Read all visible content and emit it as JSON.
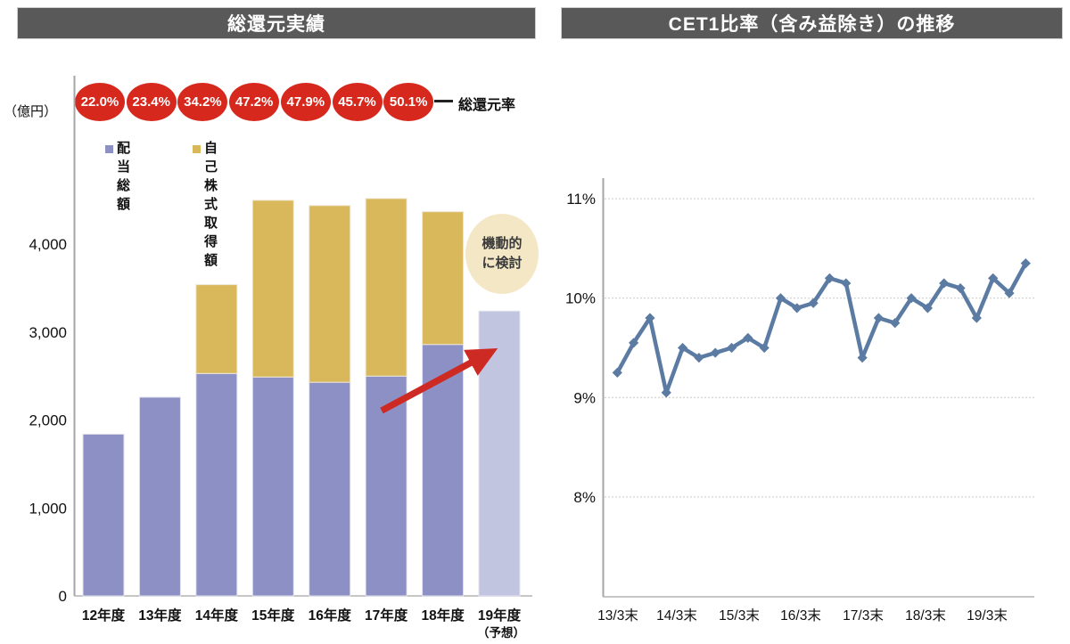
{
  "left_panel": {
    "title": "総還元実績",
    "unit_label": "（億円）",
    "ratio_label": "総還元率",
    "legend": [
      {
        "label": "配当総額",
        "color": "#8c90c4"
      },
      {
        "label": "自己株式取得額",
        "color": "#d9b85c"
      }
    ],
    "annotation": {
      "line1": "機動的",
      "line2": "に検討"
    },
    "forecast_note": "（予想）"
  },
  "right_panel": {
    "title": "CET1比率（含み益除き）の推移"
  },
  "colors": {
    "header_bg": "#595959",
    "dividend_bar": "#8c90c4",
    "buyback_bar": "#d9b85c",
    "forecast_bar": "#c2c5e0",
    "ratio_badge": "#d7281d",
    "arrow_red": "#ce2a24",
    "line_blue": "#5b7ba3",
    "annotation_bg": "#f3e7c6",
    "axis_gray": "#a6a6a6",
    "grid_gray": "#c9c9c9"
  },
  "chart_data": [
    {
      "type": "bar",
      "title": "総還元実績",
      "stacked": true,
      "unit": "億円",
      "categories": [
        "12年度",
        "13年度",
        "14年度",
        "15年度",
        "16年度",
        "17年度",
        "18年度",
        "19年度"
      ],
      "series": [
        {
          "name": "配当総額",
          "values": [
            1840,
            2260,
            2530,
            2490,
            2430,
            2500,
            2860,
            3240
          ]
        },
        {
          "name": "自己株式取得額",
          "values": [
            0,
            0,
            1010,
            2010,
            2010,
            2020,
            1510,
            0
          ]
        }
      ],
      "payout_ratios": [
        "22.0%",
        "23.4%",
        "34.2%",
        "47.2%",
        "47.9%",
        "45.7%",
        "50.1%"
      ],
      "forecast_index": 7,
      "yticks": [
        {
          "label": "0",
          "value": 0
        },
        {
          "label": "1,000",
          "value": 1000
        },
        {
          "label": "2,000",
          "value": 2000
        },
        {
          "label": "3,000",
          "value": 3000
        },
        {
          "label": "4,000",
          "value": 4000
        }
      ],
      "ylim": [
        0,
        4750
      ],
      "grid": false,
      "legend_position": "top-left"
    },
    {
      "type": "line",
      "title": "CET1比率（含み益除き）の推移",
      "x_labels": [
        "13/3末",
        "14/3末",
        "15/3末",
        "16/3末",
        "17/3末",
        "18/3末",
        "19/3末"
      ],
      "x_label_point_indices": [
        0,
        4,
        8,
        12,
        16,
        20,
        24
      ],
      "x_frequency": "quarterly",
      "values": [
        9.25,
        9.55,
        9.8,
        9.05,
        9.5,
        9.4,
        9.45,
        9.5,
        9.6,
        9.5,
        10.0,
        9.9,
        9.95,
        10.2,
        10.15,
        9.4,
        9.8,
        9.75,
        10.0,
        9.9,
        10.15,
        10.1,
        9.8,
        10.2,
        10.05,
        10.35
      ],
      "yticks": [
        {
          "label": "11%",
          "value": 11
        },
        {
          "label": "10%",
          "value": 10
        },
        {
          "label": "9%",
          "value": 9
        },
        {
          "label": "8%",
          "value": 8
        }
      ],
      "ylim": [
        7,
        11.2
      ],
      "grid": "horizontal-dotted",
      "marker": "diamond"
    }
  ]
}
